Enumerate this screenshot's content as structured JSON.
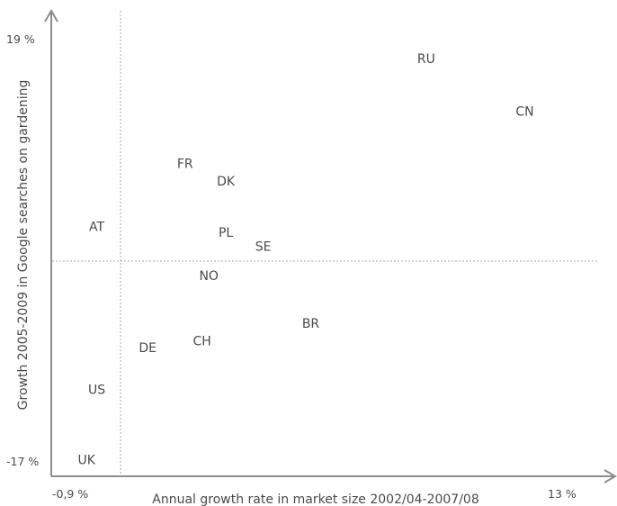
{
  "chart_data": {
    "type": "scatter",
    "xlabel": "Annual growth rate in market size 2002/04-2007/08",
    "ylabel": "Growth 2005-2009 in Google searches on gardening",
    "xlim": [
      -0.9,
      13
    ],
    "ylim": [
      -17,
      19
    ],
    "x_ticks": [
      {
        "value": -0.9,
        "label": "-0,9 %"
      },
      {
        "value": 13,
        "label": "13 %"
      }
    ],
    "y_ticks": [
      {
        "value": 19,
        "label": "19 %"
      },
      {
        "value": -17,
        "label": "-17 %"
      }
    ],
    "reference_lines": {
      "x": 0,
      "y": 0
    },
    "grid": false,
    "points": [
      {
        "label": "RU",
        "x": 9.0,
        "y": 17.3
      },
      {
        "label": "CN",
        "x": 11.9,
        "y": 12.8
      },
      {
        "label": "FR",
        "x": 1.9,
        "y": 8.3
      },
      {
        "label": "DK",
        "x": 3.1,
        "y": 6.8
      },
      {
        "label": "AT",
        "x": -0.7,
        "y": 2.9
      },
      {
        "label": "PL",
        "x": 3.1,
        "y": 2.4
      },
      {
        "label": "SE",
        "x": 4.2,
        "y": 1.2
      },
      {
        "label": "NO",
        "x": 2.6,
        "y": -1.3
      },
      {
        "label": "BR",
        "x": 5.6,
        "y": -5.4
      },
      {
        "label": "CH",
        "x": 2.4,
        "y": -6.9
      },
      {
        "label": "DE",
        "x": 0.8,
        "y": -7.5
      },
      {
        "label": "US",
        "x": -0.7,
        "y": -11.1
      },
      {
        "label": "UK",
        "x": -1.0,
        "y": -17.1
      }
    ]
  }
}
